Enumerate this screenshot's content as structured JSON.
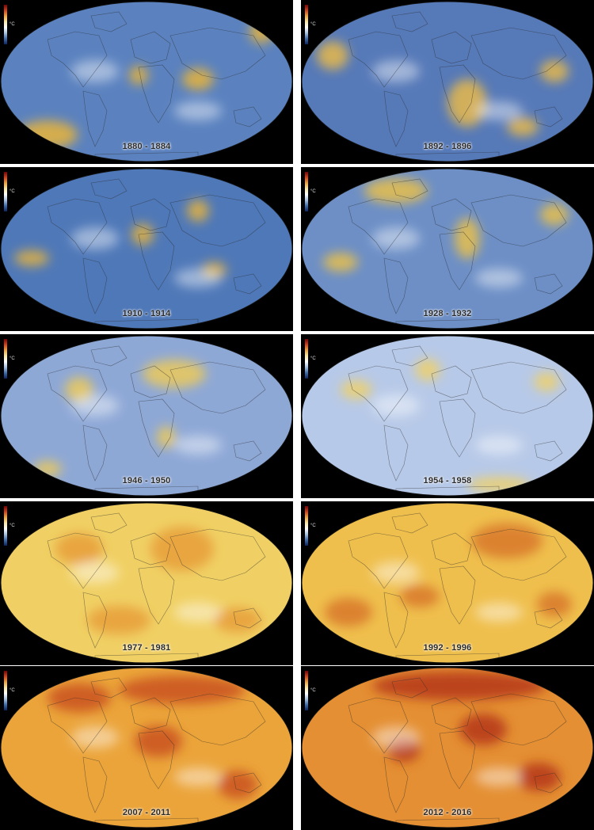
{
  "colorbar_unit": "°C",
  "panels": [
    {
      "period": "1880 - 1884",
      "palette": {
        "base": "#5b82bf",
        "hot": "#e9b43a"
      }
    },
    {
      "period": "1892 - 1896",
      "palette": {
        "base": "#5679b8",
        "hot": "#e8b94a"
      }
    },
    {
      "period": "1910 - 1914",
      "palette": {
        "base": "#4f78b8",
        "hot": "#e4b33e"
      }
    },
    {
      "period": "1928 - 1932",
      "palette": {
        "base": "#6d8fc6",
        "hot": "#e9c04a"
      }
    },
    {
      "period": "1946 - 1950",
      "palette": {
        "base": "#8ea8d6",
        "hot": "#ecc959"
      }
    },
    {
      "period": "1954 - 1958",
      "palette": {
        "base": "#b7c9e8",
        "hot": "#efd06a"
      }
    },
    {
      "period": "1977 - 1981",
      "palette": {
        "base": "#f0d064",
        "hot": "#e79e3a"
      }
    },
    {
      "period": "1992 - 1996",
      "palette": {
        "base": "#efbf4d",
        "hot": "#d8772b"
      }
    },
    {
      "period": "2007 - 2011",
      "palette": {
        "base": "#eba43a",
        "hot": "#c9511f"
      }
    },
    {
      "period": "2012 - 2016",
      "palette": {
        "base": "#e48f33",
        "hot": "#b5361a"
      }
    }
  ]
}
